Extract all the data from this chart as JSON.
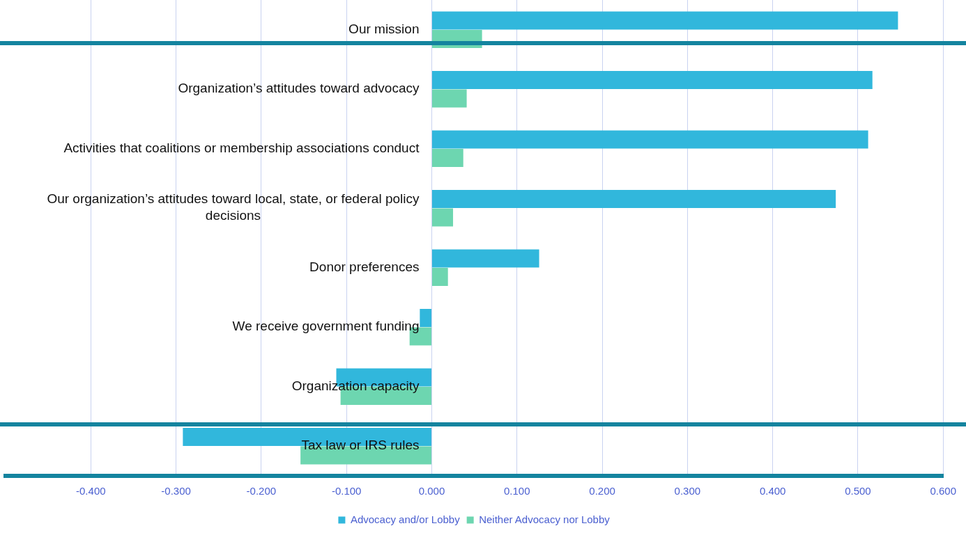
{
  "chart_data": {
    "type": "bar",
    "orientation": "horizontal",
    "categories": [
      "Our mission",
      "Organization’s attitudes toward advocacy",
      "Activities that coalitions or membership associations conduct",
      "Our organization’s attitudes toward local, state, or federal policy decisions",
      "Donor preferences",
      "We receive government funding",
      "Organization capacity",
      "Tax law or IRS rules"
    ],
    "series": [
      {
        "name": "Advocacy and/or Lobby",
        "color": "#31b7dc",
        "values": [
          0.547,
          0.517,
          0.512,
          0.474,
          0.126,
          -0.014,
          -0.112,
          -0.292
        ]
      },
      {
        "name": "Neither Advocacy nor Lobby",
        "color": "#6dd6b0",
        "values": [
          0.059,
          0.041,
          0.037,
          0.025,
          0.019,
          -0.026,
          -0.107,
          -0.154
        ]
      }
    ],
    "xlim": [
      -0.5,
      0.6
    ],
    "xticks": [
      {
        "value": -0.4,
        "label": "-0.400"
      },
      {
        "value": -0.3,
        "label": "-0.300"
      },
      {
        "value": -0.2,
        "label": "-0.200"
      },
      {
        "value": -0.1,
        "label": "-0.100"
      },
      {
        "value": 0,
        "label": "0.000"
      },
      {
        "value": 0.1,
        "label": "0.100"
      },
      {
        "value": 0.2,
        "label": "0.200"
      },
      {
        "value": 0.3,
        "label": "0.300"
      },
      {
        "value": 0.4,
        "label": "0.400"
      },
      {
        "value": 0.5,
        "label": "0.500"
      },
      {
        "value": 0.6,
        "label": "0.600"
      }
    ],
    "grid": "x",
    "legend": "bottom"
  }
}
